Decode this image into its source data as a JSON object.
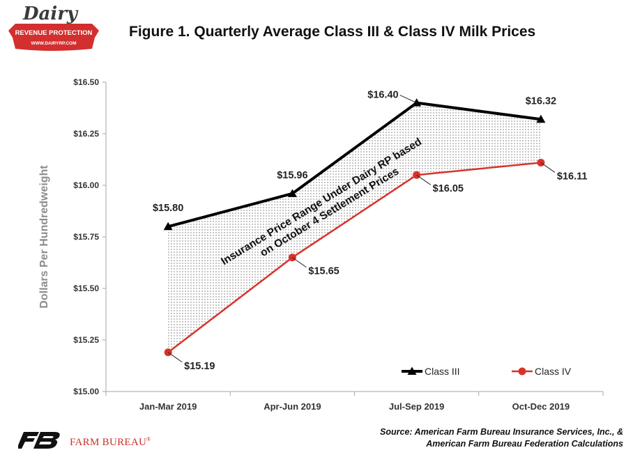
{
  "logo": {
    "word": "Dairy",
    "banner": "REVENUE PROTECTION",
    "url": "WWW.DAIRYRP.COM",
    "colors": {
      "red": "#d32f2f",
      "dark": "#3a3a3a"
    }
  },
  "title": "Figure 1. Quarterly Average Class III & Class IV Milk Prices",
  "source_lines": [
    "Source: American Farm Bureau Insurance Services, Inc., &",
    "American Farm Bureau Federation Calculations"
  ],
  "footer": {
    "org_name": "FARM BUREAU",
    "trademark": "®",
    "brand_color": "#c8312a"
  },
  "chart_data": {
    "type": "line",
    "categories": [
      "Jan-Mar 2019",
      "Apr-Jun 2019",
      "Jul-Sep 2019",
      "Oct-Dec 2019"
    ],
    "ylabel": "Dollars Per Hundredweight",
    "ylim": [
      15.0,
      16.5
    ],
    "yticks": [
      15.0,
      15.25,
      15.5,
      15.75,
      16.0,
      16.25,
      16.5
    ],
    "ytick_labels": [
      "$15.00",
      "$15.25",
      "$15.50",
      "$15.75",
      "$16.00",
      "$16.25",
      "$16.50"
    ],
    "grid": false,
    "legend_position": "bottom-right",
    "series": [
      {
        "name": "Class III",
        "values": [
          15.8,
          15.96,
          16.4,
          16.32
        ],
        "labels": [
          "$15.80",
          "$15.96",
          "$16.40",
          "$16.32"
        ],
        "color": "#000000",
        "marker": "triangle"
      },
      {
        "name": "Class IV",
        "values": [
          15.19,
          15.65,
          16.05,
          16.11
        ],
        "labels": [
          "$15.19",
          "$15.65",
          "$16.05",
          "$16.11"
        ],
        "color": "#d9322a",
        "marker": "circle"
      }
    ],
    "band_annotation": [
      "Insurance Price Range Under Dairy RP based",
      "on October 4 Settlement Prices"
    ]
  }
}
